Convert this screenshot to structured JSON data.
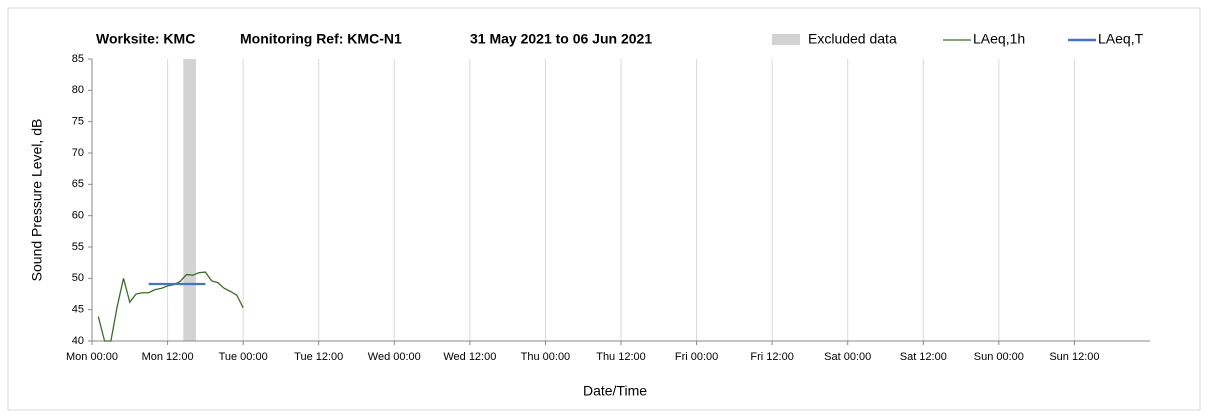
{
  "chart_data": {
    "type": "line",
    "title": [
      "Worksite: KMC",
      "Monitoring Ref: KMC-N1",
      "31 May 2021 to 06 Jun 2021"
    ],
    "xlabel": "Date/Time",
    "ylabel": "Sound Pressure Level, dB",
    "xlim": [
      0,
      168
    ],
    "xticks": [
      {
        "value": 0,
        "label": "Mon 00:00"
      },
      {
        "value": 12,
        "label": "Mon 12:00"
      },
      {
        "value": 24,
        "label": "Tue 00:00"
      },
      {
        "value": 36,
        "label": "Tue 12:00"
      },
      {
        "value": 48,
        "label": "Wed 00:00"
      },
      {
        "value": 60,
        "label": "Wed 12:00"
      },
      {
        "value": 72,
        "label": "Thu 00:00"
      },
      {
        "value": 84,
        "label": "Thu 12:00"
      },
      {
        "value": 96,
        "label": "Fri 00:00"
      },
      {
        "value": 108,
        "label": "Fri 12:00"
      },
      {
        "value": 120,
        "label": "Sat 00:00"
      },
      {
        "value": 132,
        "label": "Sat 12:00"
      },
      {
        "value": 144,
        "label": "Sun 00:00"
      },
      {
        "value": 156,
        "label": "Sun 12:00"
      }
    ],
    "ylim": [
      40,
      85
    ],
    "yticks": [
      40,
      45,
      50,
      55,
      60,
      65,
      70,
      75,
      80,
      85
    ],
    "grid": "x",
    "excluded": {
      "name": "Excluded data",
      "color": "#d3d3d3",
      "x": [
        14.5,
        16.5
      ]
    },
    "series": [
      {
        "name": "LAeq,1h",
        "color": "#3d6b2a",
        "x": [
          1,
          2,
          3,
          4,
          5,
          6,
          7,
          8,
          9,
          10,
          11,
          12,
          13,
          14,
          15,
          16,
          17,
          18,
          19,
          20,
          21,
          22,
          23,
          24
        ],
        "values": [
          43.9,
          40,
          40,
          45.5,
          50,
          46.2,
          47.5,
          47.7,
          47.7,
          48.2,
          48.4,
          48.8,
          49.0,
          49.5,
          50.6,
          50.5,
          50.9,
          51.0,
          49.6,
          49.3,
          48.4,
          47.9,
          47.3,
          45.3
        ]
      },
      {
        "name": "LAeq,T",
        "color": "#4472c4",
        "x": [
          9,
          18
        ],
        "values": [
          49.1,
          49.1
        ]
      }
    ]
  }
}
